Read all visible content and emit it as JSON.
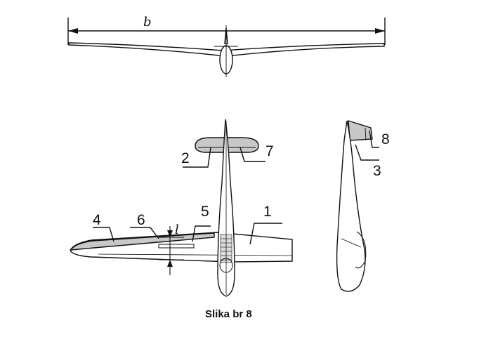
{
  "labels": {
    "span": "b",
    "length": "l",
    "n1": "1",
    "n2": "2",
    "n3": "3",
    "n4": "4",
    "n5": "5",
    "n6": "6",
    "n7": "7",
    "n8": "8"
  },
  "caption": "Slika br 8",
  "colors": {
    "ink": "#111111",
    "fill": "#c8c8c8",
    "paper": "#ffffff"
  }
}
